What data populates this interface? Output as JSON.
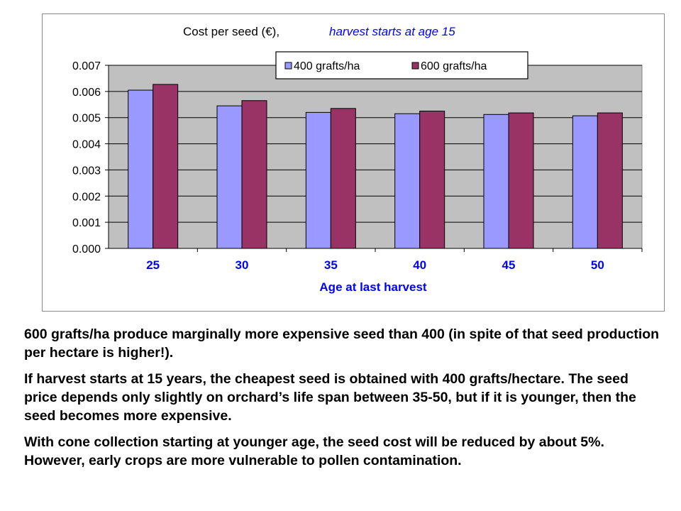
{
  "chart_data": {
    "type": "bar",
    "title": "Cost per seed (€), ",
    "subtitle": "harvest starts at age 15",
    "xlabel": "Age at last harvest",
    "ylabel": "",
    "categories": [
      "25",
      "30",
      "35",
      "40",
      "45",
      "50"
    ],
    "ylim": [
      0,
      0.007
    ],
    "yticks": [
      "0.000",
      "0.001",
      "0.002",
      "0.003",
      "0.004",
      "0.005",
      "0.006",
      "0.007"
    ],
    "grid": true,
    "legend_position": "top-right",
    "series": [
      {
        "name": "400 grafts/ha",
        "color": "#9999FF",
        "values": [
          0.00605,
          0.00545,
          0.0052,
          0.00515,
          0.00512,
          0.00507
        ]
      },
      {
        "name": "600 grafts/ha",
        "color": "#993366",
        "values": [
          0.00627,
          0.00565,
          0.00535,
          0.00525,
          0.00518,
          0.00518
        ]
      }
    ],
    "plot_background": "#C0C0C0",
    "label_color": "#0000FF"
  },
  "notes": {
    "p1": "600 grafts/ha produce marginally more expensive seed than 400 (in spite of that seed production per hectare is higher!).",
    "p2_before": "If harvest starts at 15 years",
    "p2_comma": ",",
    "p2_after": " the cheapest seed is obtained with 400 grafts/hectare. The seed price depends only slightly on orchard’s life span between 35-50, but if it is younger, then the seed becomes more expensive.",
    "p3": "With cone collection starting at younger age, the seed cost will be reduced by about 5%. However, early crops are more vulnerable to pollen contamination."
  }
}
